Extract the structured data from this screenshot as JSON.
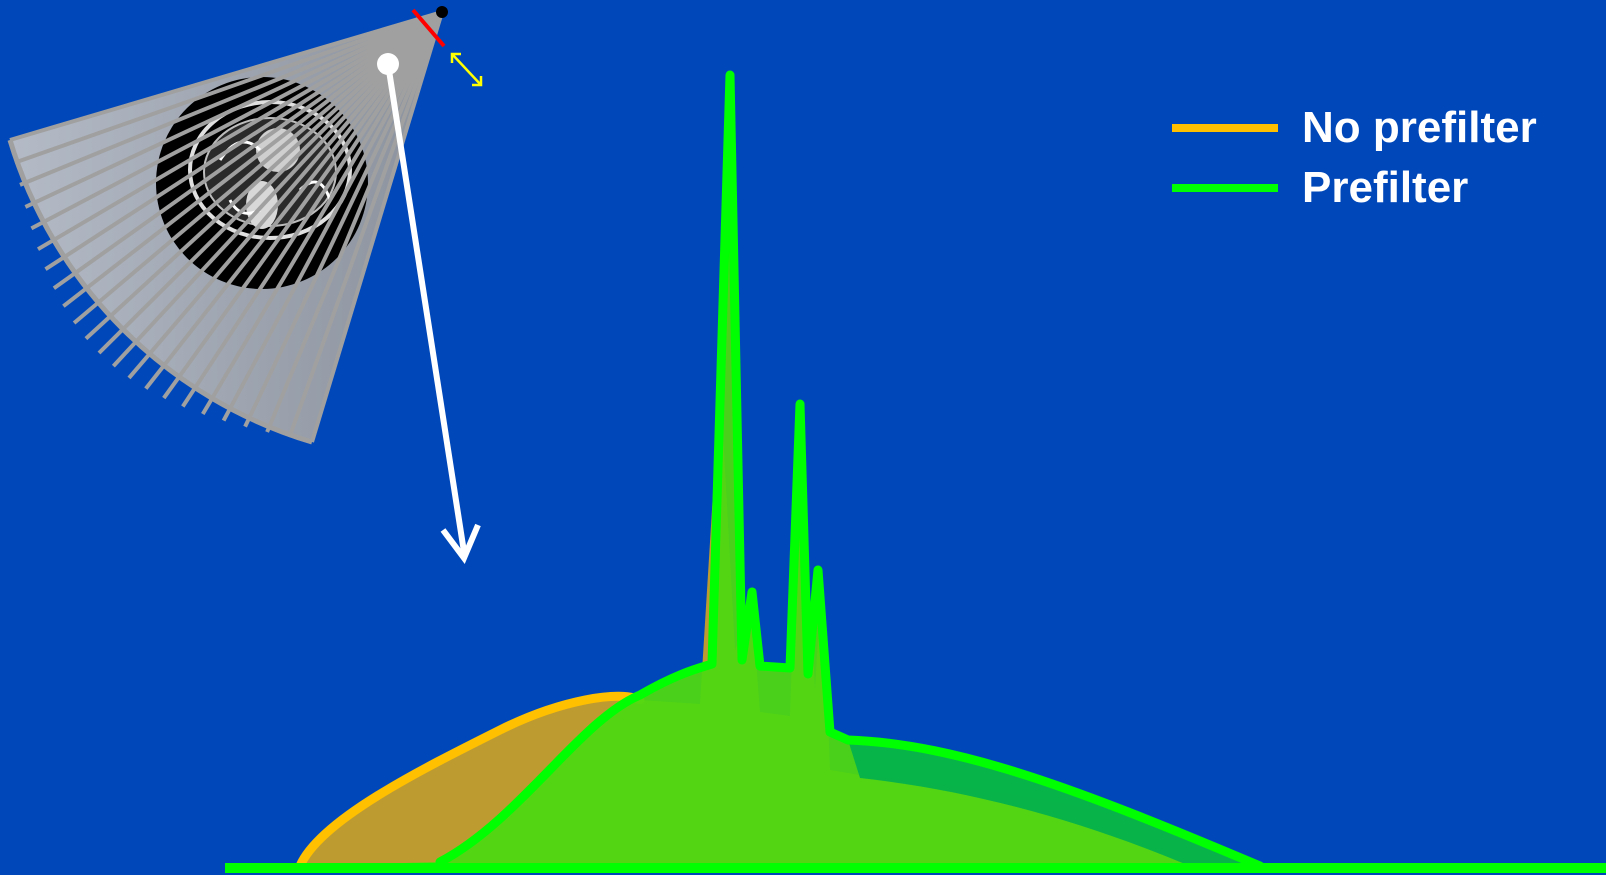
{
  "colors": {
    "background": "#0048BA",
    "no_prefilter": "#FFC000",
    "prefilter": "#00FF00",
    "beam": "#A0A0A0",
    "arrow": "#FFFFFF",
    "filter_mark": "#FF0000",
    "adjust_arrow": "#FFFF00"
  },
  "legend": {
    "items": [
      {
        "label": "No prefilter",
        "color": "#FFC000"
      },
      {
        "label": "Prefilter",
        "color": "#00FF00"
      }
    ]
  },
  "icons": {
    "scanner": "fan-beam-ct-scanner-icon",
    "patient": "body-cross-section-icon",
    "focal_spot": "x-ray-source-icon",
    "filter": "prefilter-plate-icon",
    "adjust": "double-headed-arrow-icon",
    "pointer": "down-arrow-icon"
  }
}
